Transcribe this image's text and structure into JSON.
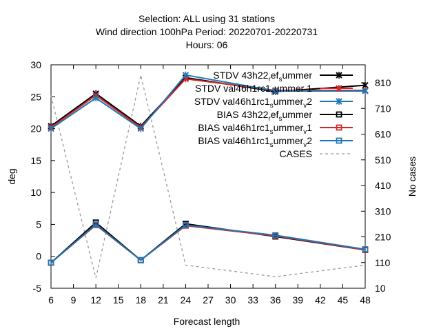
{
  "chart_data": {
    "type": "line",
    "title_lines": [
      "Selection: ALL using    31 stations",
      "Wind direction 100hPa   Period: 20220701-20220731",
      "Hours:  06"
    ],
    "xlabel": "Forecast length",
    "ylabel": "deg",
    "y2label": "No cases",
    "x": [
      6,
      12,
      18,
      24,
      36,
      48
    ],
    "xlim": [
      6,
      48
    ],
    "xticks": [
      6,
      9,
      12,
      15,
      18,
      21,
      24,
      27,
      30,
      33,
      36,
      39,
      42,
      45,
      48
    ],
    "ylim": [
      -5,
      30
    ],
    "yticks": [
      -5,
      0,
      5,
      10,
      15,
      20,
      25,
      30
    ],
    "y2lim": [
      10,
      880
    ],
    "y2ticks": [
      10,
      110,
      210,
      310,
      410,
      510,
      610,
      710,
      810
    ],
    "grid": false,
    "legend_position": "top-right",
    "series": [
      {
        "name": "STDV 43h22_ref_summer",
        "legend_parts": [
          "STDV 43h22",
          "r",
          "ef",
          "s",
          "ummer"
        ],
        "values": [
          20.4,
          25.5,
          20.4,
          28.0,
          25.8,
          26.8
        ],
        "color": "#000000",
        "marker": "x",
        "dash": "",
        "axis": "y"
      },
      {
        "name": "STDV val46h1rc1_summer_1",
        "legend_parts": [
          "STDV val46h1rc1",
          "s",
          "ummer",
          "",
          "1"
        ],
        "values": [
          20.2,
          25.2,
          20.2,
          27.8,
          26.0,
          26.0
        ],
        "color": "#d62728",
        "marker": "x",
        "dash": "",
        "axis": "y"
      },
      {
        "name": "STDV val46h1rc1_summer_v2",
        "legend_parts": [
          "STDV val46h1rc1",
          "s",
          "ummer",
          "v",
          "2"
        ],
        "values": [
          20.0,
          24.8,
          20.0,
          28.4,
          25.9,
          25.9
        ],
        "color": "#1f77b4",
        "marker": "x",
        "dash": "",
        "axis": "y"
      },
      {
        "name": "BIAS 43h22_ref_summer",
        "legend_parts": [
          "BIAS 43h22",
          "r",
          "ef",
          "s",
          "ummer"
        ],
        "values": [
          -1.0,
          5.3,
          -0.6,
          5.1,
          3.1,
          1.0
        ],
        "color": "#000000",
        "marker": "square",
        "dash": "",
        "axis": "y"
      },
      {
        "name": "BIAS val46h1rc1_summer_v1",
        "legend_parts": [
          "BIAS val46h1rc1",
          "s",
          "ummer",
          "v",
          "1"
        ],
        "values": [
          -1.0,
          4.9,
          -0.6,
          4.8,
          3.2,
          1.0
        ],
        "color": "#d62728",
        "marker": "square",
        "dash": "",
        "axis": "y"
      },
      {
        "name": "BIAS val46h1rc1_summer_v2",
        "legend_parts": [
          "BIAS val46h1rc1",
          "s",
          "ummer",
          "v",
          "2"
        ],
        "values": [
          -1.0,
          5.0,
          -0.6,
          4.9,
          3.3,
          1.1
        ],
        "color": "#1f77b4",
        "marker": "square",
        "dash": "",
        "axis": "y"
      },
      {
        "name": "CASES",
        "legend_parts": [
          "CASES",
          "",
          "",
          "",
          ""
        ],
        "values": [
          760,
          50,
          840,
          100,
          55,
          100
        ],
        "color": "#999999",
        "marker": "none",
        "dash": "4,4",
        "axis": "y2"
      }
    ]
  }
}
